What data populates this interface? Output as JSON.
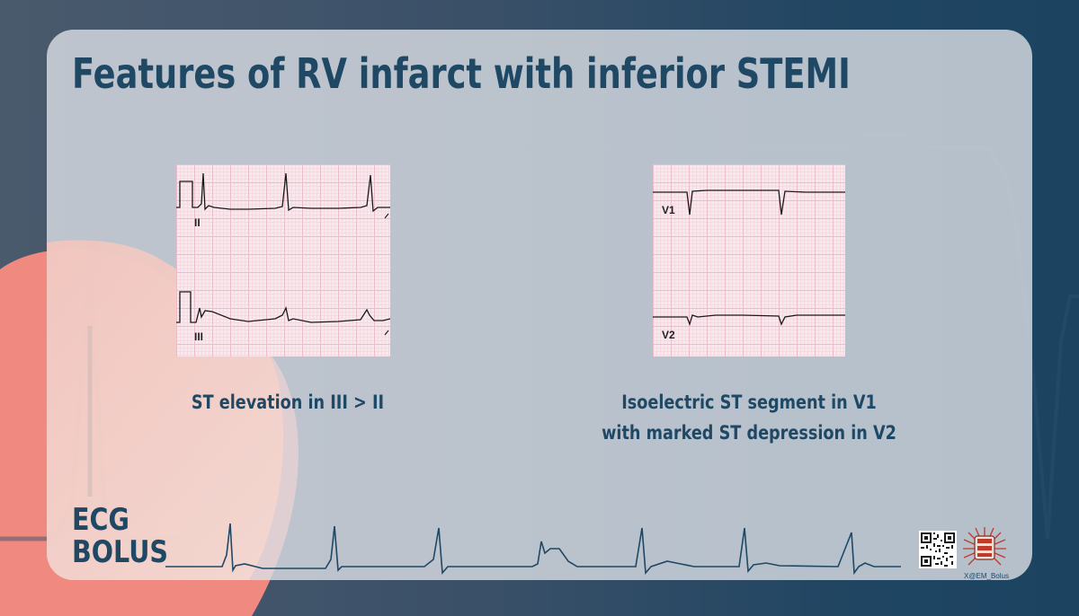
{
  "title": "Features of RV infarct with inferior STEMI",
  "left_figure": {
    "lead_top": "II",
    "lead_bottom": "III",
    "caption": "ST elevation in III > II"
  },
  "right_figure": {
    "lead_top": "V1",
    "lead_bottom": "V2",
    "caption_line1": "Isoelectric ST segment in V1",
    "caption_line2": "with marked ST depression in V2"
  },
  "brand": {
    "line1": "ECG",
    "line2": "BOLUS"
  },
  "social_handle": "X@EM_Bolus",
  "colors": {
    "title": "#1f4865",
    "background_dark": "#1f4562",
    "accent_pink": "#f08a80",
    "ecg_grid": "#eebbc9"
  },
  "icons": [
    "qr-code-icon",
    "bolus-badge-icon"
  ]
}
